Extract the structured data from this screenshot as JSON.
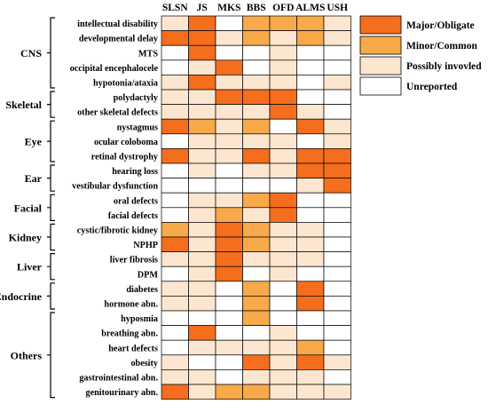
{
  "diseases": [
    "SLSN",
    "JS",
    "MKS",
    "BBS",
    "OFD",
    "ALMS",
    "USH"
  ],
  "levels": {
    "M": {
      "label": "Major/Obligate",
      "color": "#f46e1e"
    },
    "C": {
      "label": "Minor/Common",
      "color": "#f8a94a"
    },
    "P": {
      "label": "Possibly invovled",
      "color": "#fde6cf"
    },
    "U": {
      "label": "Unreported",
      "color": "#ffffff"
    }
  },
  "legend_order": [
    "M",
    "C",
    "P",
    "U"
  ],
  "groups": [
    {
      "name": "CNS",
      "rows": [
        {
          "label": "intellectual disability",
          "cells": [
            "P",
            "M",
            "U",
            "C",
            "C",
            "C",
            "P"
          ]
        },
        {
          "label": "developmental delay",
          "cells": [
            "M",
            "M",
            "P",
            "C",
            "P",
            "C",
            "P"
          ]
        },
        {
          "label": "MTS",
          "cells": [
            "U",
            "M",
            "U",
            "U",
            "P",
            "U",
            "U"
          ]
        },
        {
          "label": "occipital encephalocele",
          "cells": [
            "U",
            "P",
            "M",
            "U",
            "P",
            "U",
            "U"
          ]
        },
        {
          "label": "hypotonia/ataxia",
          "cells": [
            "P",
            "M",
            "P",
            "P",
            "P",
            "U",
            "P"
          ]
        }
      ]
    },
    {
      "name": "Skeletal",
      "rows": [
        {
          "label": "polydactyly",
          "cells": [
            "P",
            "P",
            "M",
            "M",
            "M",
            "U",
            "U"
          ]
        },
        {
          "label": "other skeletal defects",
          "cells": [
            "P",
            "P",
            "P",
            "P",
            "M",
            "P",
            "U"
          ]
        }
      ]
    },
    {
      "name": "Eye",
      "rows": [
        {
          "label": "nystagmus",
          "cells": [
            "M",
            "C",
            "P",
            "C",
            "U",
            "M",
            "P"
          ]
        },
        {
          "label": "ocular coloboma",
          "cells": [
            "U",
            "P",
            "P",
            "P",
            "P",
            "U",
            "P"
          ]
        },
        {
          "label": "retinal dystrophy",
          "cells": [
            "M",
            "P",
            "P",
            "M",
            "P",
            "M",
            "M"
          ]
        }
      ]
    },
    {
      "name": "Ear",
      "rows": [
        {
          "label": "hearing loss",
          "cells": [
            "U",
            "P",
            "U",
            "P",
            "P",
            "M",
            "M"
          ]
        },
        {
          "label": "vestibular dysfunction",
          "cells": [
            "U",
            "U",
            "U",
            "U",
            "U",
            "P",
            "M"
          ]
        }
      ]
    },
    {
      "name": "Facial",
      "rows": [
        {
          "label": "oral defects",
          "cells": [
            "U",
            "P",
            "P",
            "C",
            "M",
            "U",
            "U"
          ]
        },
        {
          "label": "facial defects",
          "cells": [
            "U",
            "P",
            "C",
            "P",
            "M",
            "U",
            "U"
          ]
        }
      ]
    },
    {
      "name": "Kidney",
      "rows": [
        {
          "label": "cystic/fibrotic kidney",
          "cells": [
            "C",
            "P",
            "M",
            "C",
            "P",
            "P",
            "U"
          ]
        },
        {
          "label": "NPHP",
          "cells": [
            "M",
            "P",
            "M",
            "C",
            "P",
            "P",
            "U"
          ]
        }
      ]
    },
    {
      "name": "Liver",
      "rows": [
        {
          "label": "liver fibrosis",
          "cells": [
            "P",
            "P",
            "M",
            "P",
            "P",
            "P",
            "U"
          ]
        },
        {
          "label": "DPM",
          "cells": [
            "U",
            "P",
            "M",
            "U",
            "P",
            "U",
            "U"
          ]
        }
      ]
    },
    {
      "name": "Endocrine",
      "rows": [
        {
          "label": "diabetes",
          "cells": [
            "P",
            "P",
            "U",
            "C",
            "U",
            "M",
            "U"
          ]
        },
        {
          "label": "hormone abn.",
          "cells": [
            "P",
            "P",
            "U",
            "C",
            "U",
            "M",
            "U"
          ]
        }
      ]
    },
    {
      "name": "Others",
      "rows": [
        {
          "label": "hyposmia",
          "cells": [
            "U",
            "U",
            "U",
            "C",
            "U",
            "U",
            "U"
          ]
        },
        {
          "label": "breathing abn.",
          "cells": [
            "U",
            "M",
            "U",
            "U",
            "P",
            "U",
            "U"
          ]
        },
        {
          "label": "heart defects",
          "cells": [
            "U",
            "P",
            "P",
            "P",
            "P",
            "C",
            "U"
          ]
        },
        {
          "label": "obesity",
          "cells": [
            "P",
            "U",
            "U",
            "M",
            "P",
            "M",
            "P"
          ]
        },
        {
          "label": "gastrointestinal abn.",
          "cells": [
            "P",
            "P",
            "U",
            "P",
            "P",
            "P",
            "U"
          ]
        },
        {
          "label": "genitourinary abn.",
          "cells": [
            "M",
            "P",
            "C",
            "C",
            "P",
            "P",
            "P"
          ]
        }
      ]
    }
  ]
}
